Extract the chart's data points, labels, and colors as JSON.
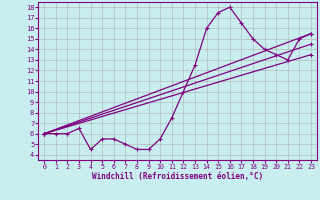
{
  "xlabel": "Windchill (Refroidissement éolien,°C)",
  "background_color": "#c8eef0",
  "grid_color": "#b0b0b0",
  "line_color": "#800080",
  "xlim": [
    -0.5,
    23.5
  ],
  "ylim": [
    3.5,
    18.5
  ],
  "xticks": [
    0,
    1,
    2,
    3,
    4,
    5,
    6,
    7,
    8,
    9,
    10,
    11,
    12,
    13,
    14,
    15,
    16,
    17,
    18,
    19,
    20,
    21,
    22,
    23
  ],
  "yticks": [
    4,
    5,
    6,
    7,
    8,
    9,
    10,
    11,
    12,
    13,
    14,
    15,
    16,
    17,
    18
  ],
  "line1_x": [
    0,
    1,
    2,
    3,
    4,
    5,
    6,
    7,
    8,
    9,
    10,
    11,
    12,
    13,
    14,
    15,
    16,
    17,
    18,
    19,
    20,
    21,
    22,
    23
  ],
  "line1_y": [
    6,
    6,
    6,
    6.5,
    4.5,
    5.5,
    5.5,
    5,
    4.5,
    4.5,
    5.5,
    7.5,
    10,
    12.5,
    16,
    17.5,
    18,
    16.5,
    15,
    14,
    13.5,
    13,
    15,
    15.5
  ],
  "line2_x": [
    0,
    23
  ],
  "line2_y": [
    6.0,
    15.5
  ],
  "line3_x": [
    0,
    23
  ],
  "line3_y": [
    6.0,
    14.5
  ],
  "line4_x": [
    0,
    23
  ],
  "line4_y": [
    6.0,
    13.5
  ],
  "linewidth": 0.9,
  "marker_size": 3.5
}
